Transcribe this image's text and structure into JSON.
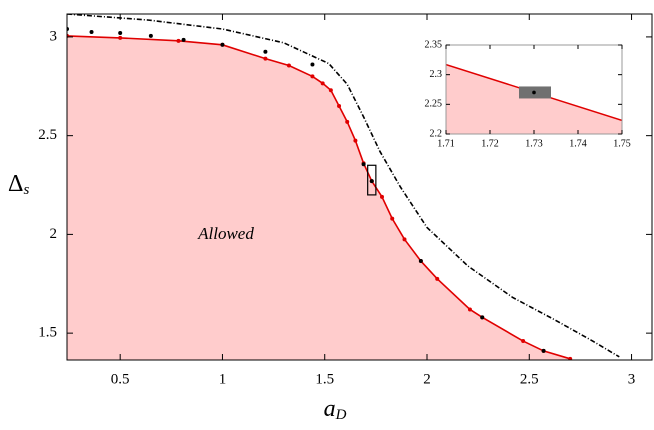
{
  "chart_data": [
    {
      "type": "line",
      "xlabel": [
        "a",
        "D"
      ],
      "ylabel": [
        "Δ",
        "s"
      ],
      "annotation": "Allowed",
      "xlim": [
        0.24,
        3.1
      ],
      "ylim": [
        1.364,
        3.116
      ],
      "xticks": [
        0.5,
        1,
        1.5,
        2,
        2.5,
        3
      ],
      "yticks": [
        1.5,
        2,
        2.5,
        3
      ],
      "series": [
        {
          "color": "#e00000",
          "fill": "#ffcccc",
          "line": "solid",
          "markers": true,
          "x": [
            0.24,
            0.5,
            0.785,
            1.0,
            1.21,
            1.325,
            1.44,
            1.49,
            1.53,
            1.57,
            1.61,
            1.65,
            1.69,
            1.73,
            1.78,
            1.83,
            1.89,
            1.97,
            2.05,
            2.21,
            2.27,
            2.47,
            2.57,
            2.7
          ],
          "values": [
            3.005,
            2.995,
            2.98,
            2.96,
            2.89,
            2.855,
            2.8,
            2.765,
            2.73,
            2.65,
            2.57,
            2.475,
            2.36,
            2.27,
            2.19,
            2.08,
            1.975,
            1.865,
            1.775,
            1.62,
            1.58,
            1.46,
            1.41,
            1.37
          ]
        },
        {
          "color": "#000000",
          "line": "none",
          "markers": true,
          "x": [
            0.24,
            0.36,
            0.5,
            0.65,
            0.81,
            1.0,
            1.21,
            1.44,
            1.69,
            1.73,
            1.97,
            2.27,
            2.57
          ],
          "values": [
            3.04,
            3.025,
            3.02,
            3.005,
            2.985,
            2.96,
            2.925,
            2.86,
            2.355,
            2.27,
            1.865,
            1.58,
            1.41
          ]
        },
        {
          "color": "#000000",
          "line": "dashdot",
          "markers": false,
          "x": [
            0.24,
            0.64,
            1.0,
            1.3,
            1.52,
            1.61,
            1.69,
            1.77,
            1.87,
            2.0,
            2.2,
            2.42,
            2.62,
            2.81,
            2.94
          ],
          "values": [
            3.116,
            3.085,
            3.04,
            2.97,
            2.865,
            2.76,
            2.595,
            2.42,
            2.24,
            2.035,
            1.84,
            1.68,
            1.57,
            1.46,
            1.38
          ]
        }
      ]
    },
    {
      "type": "line",
      "xlim": [
        1.71,
        1.75
      ],
      "ylim": [
        2.2,
        2.35
      ],
      "xticks": [
        1.71,
        1.72,
        1.73,
        1.74,
        1.75
      ],
      "yticks": [
        2.2,
        2.25,
        2.3,
        2.35
      ],
      "series": [
        {
          "color": "#e00000",
          "fill": "#ffcccc",
          "line": "solid",
          "markers": false,
          "x": [
            1.71,
            1.75
          ],
          "values": [
            2.317,
            2.223
          ]
        },
        {
          "color": "#000000",
          "line": "none",
          "markers": true,
          "highlight": "#707070",
          "x": [
            1.73
          ],
          "values": [
            2.27
          ]
        }
      ]
    }
  ]
}
